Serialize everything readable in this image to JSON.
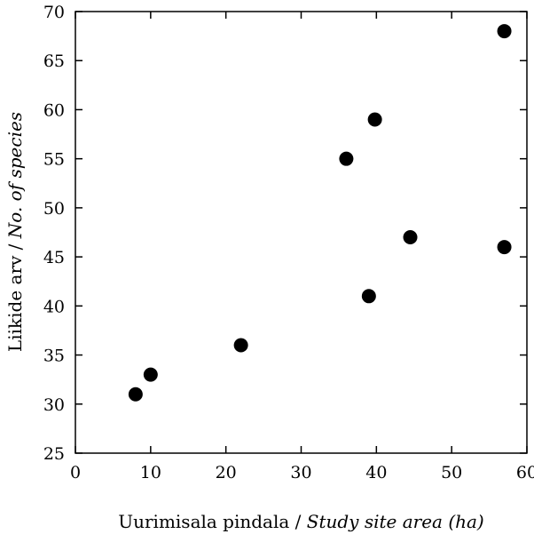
{
  "chart_data": {
    "type": "scatter",
    "title": "",
    "xlabel": {
      "plain": "Uurimisala pindala / ",
      "italic": "Study site area (ha)"
    },
    "ylabel": {
      "plain": "Liikide arv / ",
      "italic": "No. of species"
    },
    "xlim": [
      0,
      60
    ],
    "ylim": [
      25,
      70
    ],
    "xticks": [
      0,
      10,
      20,
      30,
      40,
      50,
      60
    ],
    "yticks": [
      25,
      30,
      35,
      40,
      45,
      50,
      55,
      60,
      65,
      70
    ],
    "grid": false,
    "marker_color": "#000000",
    "points": [
      {
        "x": 8,
        "y": 31
      },
      {
        "x": 10,
        "y": 33
      },
      {
        "x": 22,
        "y": 36
      },
      {
        "x": 36,
        "y": 55
      },
      {
        "x": 39,
        "y": 41
      },
      {
        "x": 39.8,
        "y": 59
      },
      {
        "x": 44.5,
        "y": 47
      },
      {
        "x": 57,
        "y": 46
      },
      {
        "x": 57,
        "y": 68
      }
    ]
  }
}
